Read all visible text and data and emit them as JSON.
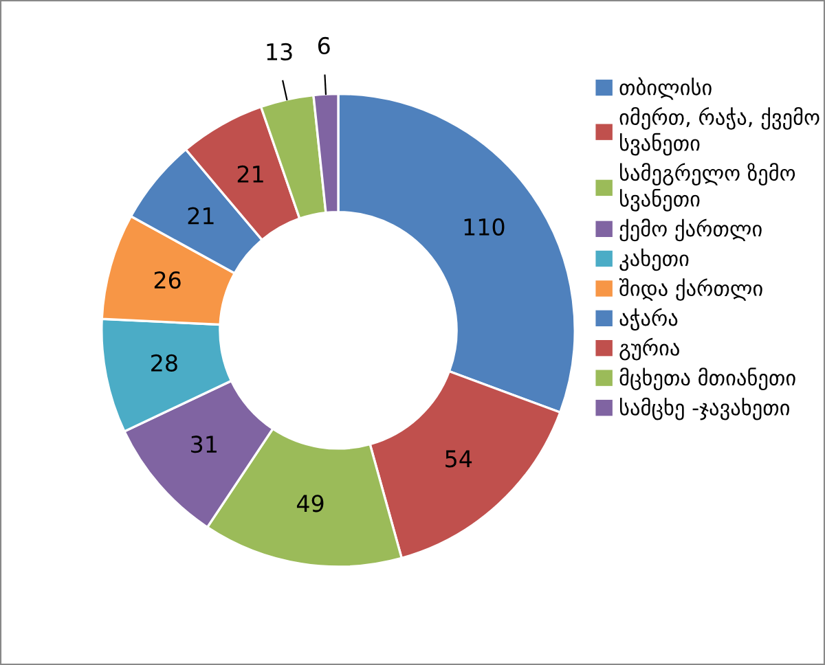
{
  "chart_data": {
    "type": "donut",
    "categories": [
      "თბილისი",
      "იმერთ, რაჭა, ქვემო სვანეთი",
      "სამეგრელო ზემო სვანეთი",
      "ქემო ქართლი",
      "კახეთი",
      "შიდა ქართლი",
      "აჭარა",
      "გურია",
      "მცხეთა მთიანეთი",
      "სამცხე -ჯავახეთი"
    ],
    "values": [
      110,
      54,
      49,
      31,
      28,
      26,
      21,
      21,
      13,
      6
    ],
    "colors": [
      "#4f81bd",
      "#c0504d",
      "#9bbb59",
      "#8064a2",
      "#4bacc6",
      "#f79646",
      "#4f81bd",
      "#c0504d",
      "#9bbb59",
      "#8064a2"
    ],
    "data_labels": true,
    "legend": "right"
  }
}
